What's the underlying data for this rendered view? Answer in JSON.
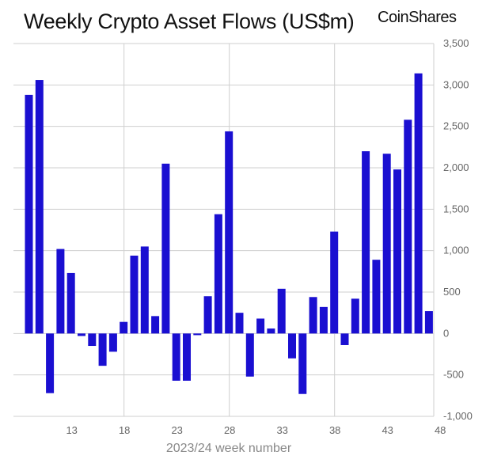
{
  "header": {
    "title": "Weekly Crypto Asset Flows (US$m)",
    "brand": "CoinShares"
  },
  "chart_data": {
    "type": "bar",
    "title": "Weekly Crypto Asset Flows (US$m)",
    "xlabel": "2023/24 week number",
    "ylabel": "",
    "ylim": [
      -1000,
      3500
    ],
    "yticks": [
      "3,500",
      "3,000",
      "2,500",
      "2,000",
      "1,500",
      "1,000",
      "500",
      "0",
      "-500",
      "-1,000"
    ],
    "ytick_values": [
      3500,
      3000,
      2500,
      2000,
      1500,
      1000,
      500,
      0,
      -500,
      -1000
    ],
    "xticks": [
      "13",
      "18",
      "23",
      "28",
      "33",
      "38",
      "43",
      "48"
    ],
    "xtick_values": [
      13,
      18,
      23,
      28,
      33,
      38,
      43,
      48
    ],
    "x_gridlines_at": [
      18,
      28,
      38
    ],
    "grid": "vertical+horizontal",
    "bar_color": "#1a0fd1",
    "categories": [
      9,
      10,
      11,
      12,
      13,
      14,
      15,
      16,
      17,
      18,
      19,
      20,
      21,
      22,
      23,
      24,
      25,
      26,
      27,
      28,
      29,
      30,
      31,
      32,
      33,
      34,
      35,
      36,
      37,
      38,
      39,
      40,
      41,
      42,
      43,
      44,
      45,
      46,
      47,
      48
    ],
    "values": [
      2880,
      3060,
      -720,
      1020,
      730,
      -30,
      -150,
      -390,
      -220,
      140,
      940,
      1050,
      210,
      2050,
      -570,
      -570,
      -20,
      450,
      1440,
      2440,
      250,
      -520,
      180,
      60,
      540,
      -300,
      -730,
      440,
      320,
      1230,
      -140,
      420,
      2200,
      890,
      2170,
      1980,
      2580,
      3140,
      270,
      0
    ]
  }
}
